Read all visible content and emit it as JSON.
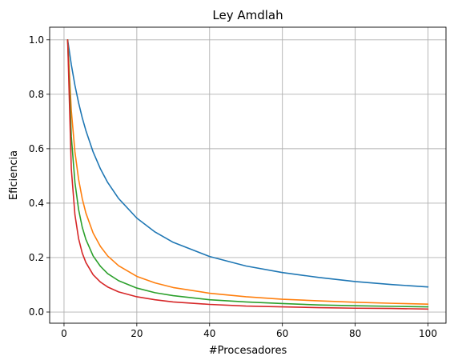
{
  "chart_data": {
    "type": "line",
    "title": "Ley Amdlah",
    "xlabel": "#Procesadores",
    "ylabel": "Eficiencia",
    "xlim": [
      -3.95,
      104.95
    ],
    "ylim": [
      -0.0411,
      1.0464
    ],
    "xticks": [
      0,
      20,
      40,
      60,
      80,
      100
    ],
    "yticks": [
      0.0,
      0.2,
      0.4,
      0.6,
      0.8,
      1.0
    ],
    "xtick_labels": [
      "0",
      "20",
      "40",
      "60",
      "80",
      "100"
    ],
    "ytick_labels": [
      "0.0",
      "0.2",
      "0.4",
      "0.6",
      "0.8",
      "1.0"
    ],
    "grid": true,
    "legend": false,
    "series": [
      {
        "color": "#1f77b4",
        "x": [
          1,
          2,
          3,
          4,
          5,
          6,
          8,
          10,
          12,
          15,
          20,
          25,
          30,
          40,
          50,
          60,
          70,
          80,
          90,
          100
        ],
        "y": [
          1.0,
          0.909,
          0.833,
          0.769,
          0.714,
          0.667,
          0.588,
          0.526,
          0.476,
          0.417,
          0.345,
          0.294,
          0.256,
          0.204,
          0.169,
          0.145,
          0.127,
          0.112,
          0.101,
          0.092
        ]
      },
      {
        "color": "#ff7f0e",
        "x": [
          1,
          2,
          3,
          4,
          5,
          6,
          8,
          10,
          12,
          15,
          20,
          25,
          30,
          40,
          50,
          60,
          70,
          80,
          90,
          100
        ],
        "y": [
          1.0,
          0.741,
          0.588,
          0.488,
          0.417,
          0.364,
          0.29,
          0.241,
          0.206,
          0.17,
          0.131,
          0.107,
          0.09,
          0.069,
          0.056,
          0.047,
          0.041,
          0.036,
          0.032,
          0.029
        ]
      },
      {
        "color": "#2ca02c",
        "x": [
          1,
          2,
          3,
          4,
          5,
          6,
          8,
          10,
          12,
          15,
          20,
          25,
          30,
          40,
          50,
          60,
          70,
          80,
          90,
          100
        ],
        "y": [
          1.0,
          0.645,
          0.476,
          0.377,
          0.312,
          0.267,
          0.206,
          0.168,
          0.141,
          0.115,
          0.088,
          0.071,
          0.06,
          0.045,
          0.037,
          0.031,
          0.026,
          0.023,
          0.021,
          0.019
        ]
      },
      {
        "color": "#d62728",
        "x": [
          1,
          2,
          3,
          4,
          5,
          6,
          8,
          10,
          12,
          15,
          20,
          25,
          30,
          40,
          50,
          60,
          70,
          80,
          90,
          100
        ],
        "y": [
          1.0,
          0.526,
          0.357,
          0.27,
          0.217,
          0.182,
          0.137,
          0.11,
          0.092,
          0.074,
          0.056,
          0.045,
          0.037,
          0.028,
          0.022,
          0.019,
          0.016,
          0.014,
          0.013,
          0.011
        ]
      }
    ]
  }
}
